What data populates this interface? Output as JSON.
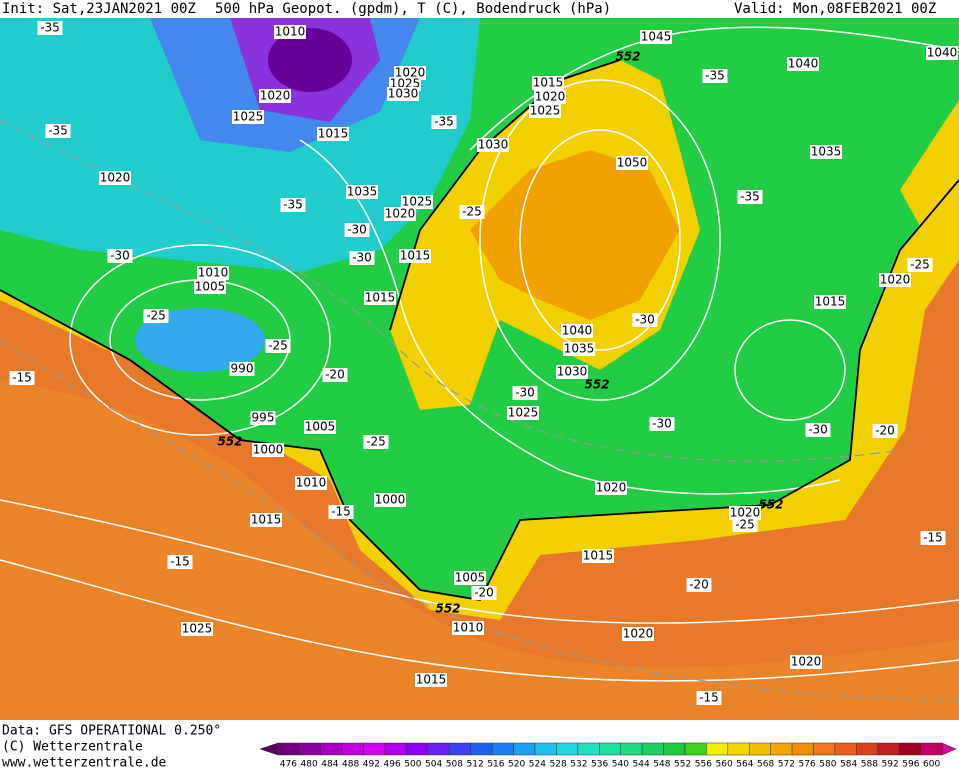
{
  "header": {
    "init": "Init: Sat,23JAN2021 00Z",
    "title": "500 hPa Geopot. (gpdm), T (C), Bodendruck (hPa)",
    "valid": "Valid: Mon,08FEB2021 00Z"
  },
  "footer": {
    "data": "Data: GFS OPERATIONAL 0.250°",
    "copyright": "(C) Wetterzentrale",
    "url": "www.wetterzentrale.de"
  },
  "map_labels": [
    "1010",
    "-35",
    "1020",
    "1025",
    "-35",
    "1015",
    "1020",
    "1020",
    "1025",
    "1030",
    "-35",
    "1015",
    "1020",
    "1025",
    "1030",
    "552",
    "1045",
    "-35",
    "1040",
    "1040",
    "1050",
    "1035",
    "-35",
    "1035",
    "1025",
    "1020",
    "-35",
    "-25",
    "-30",
    "-30",
    "1015",
    "-30",
    "1010",
    "1005",
    "1015",
    "-25",
    "1020",
    "-25",
    "1015",
    "-30",
    "1040",
    "-25",
    "1035",
    "990",
    "1030",
    "552",
    "-15",
    "-20",
    "-30",
    "1025",
    "995",
    "1005",
    "-30",
    "-30",
    "-20",
    "552",
    "1000",
    "-25",
    "1010",
    "1000",
    "1020",
    "552",
    "-15",
    "1015",
    "1020",
    "-25",
    "-15",
    "1015",
    "-15",
    "1005",
    "-20",
    "-20",
    "552",
    "1025",
    "1010",
    "1020",
    "1020",
    "1015",
    "-15"
  ],
  "colorbar": {
    "labels": [
      "476",
      "480",
      "484",
      "488",
      "492",
      "496",
      "500",
      "504",
      "508",
      "512",
      "516",
      "520",
      "524",
      "528",
      "532",
      "536",
      "540",
      "544",
      "548",
      "552",
      "556",
      "560",
      "564",
      "568",
      "572",
      "576",
      "580",
      "584",
      "588",
      "592",
      "596",
      "600"
    ]
  }
}
